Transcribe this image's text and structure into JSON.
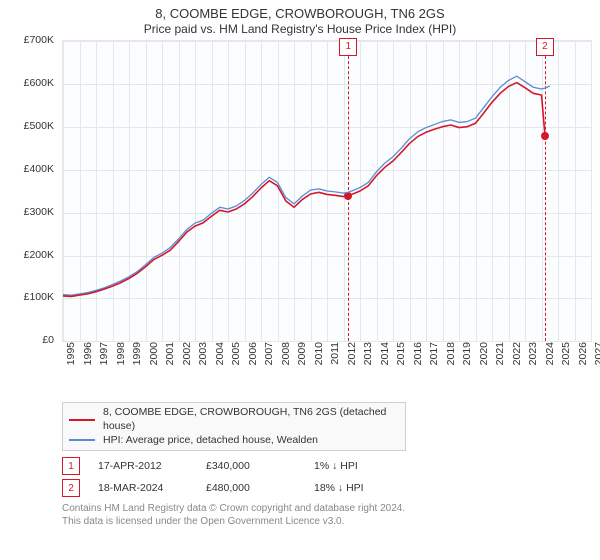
{
  "title": "8, COOMBE EDGE, CROWBOROUGH, TN6 2GS",
  "subtitle": "Price paid vs. HM Land Registry's House Price Index (HPI)",
  "chart": {
    "background_color": "#fcfdfe",
    "grid_color": "#e4e8ee",
    "axis_color": "#444444",
    "font_size_axis": 10.5,
    "x": {
      "min": 1995,
      "max": 2027,
      "ticks": [
        1995,
        1996,
        1997,
        1998,
        1999,
        2000,
        2001,
        2002,
        2003,
        2004,
        2005,
        2006,
        2007,
        2008,
        2009,
        2010,
        2011,
        2012,
        2013,
        2014,
        2015,
        2016,
        2017,
        2018,
        2019,
        2020,
        2021,
        2022,
        2023,
        2024,
        2025,
        2026,
        2027
      ]
    },
    "y": {
      "min": 0,
      "max": 700000,
      "ticks": [
        0,
        100000,
        200000,
        300000,
        400000,
        500000,
        600000,
        700000
      ],
      "tick_labels": [
        "£0",
        "£100K",
        "£200K",
        "£300K",
        "£400K",
        "£500K",
        "£600K",
        "£700K"
      ]
    },
    "series": [
      {
        "id": "hpi",
        "label": "HPI: Average price, detached house, Wealden",
        "color": "#5a8bd6",
        "line_width": 1.3,
        "points": [
          [
            1995.0,
            108000
          ],
          [
            1995.5,
            107000
          ],
          [
            1996.0,
            110000
          ],
          [
            1996.5,
            113000
          ],
          [
            1997.0,
            118000
          ],
          [
            1997.5,
            124000
          ],
          [
            1998.0,
            132000
          ],
          [
            1998.5,
            140000
          ],
          [
            1999.0,
            150000
          ],
          [
            1999.5,
            162000
          ],
          [
            2000.0,
            178000
          ],
          [
            2000.5,
            195000
          ],
          [
            2001.0,
            205000
          ],
          [
            2001.5,
            218000
          ],
          [
            2002.0,
            238000
          ],
          [
            2002.5,
            260000
          ],
          [
            2003.0,
            275000
          ],
          [
            2003.5,
            282000
          ],
          [
            2004.0,
            298000
          ],
          [
            2004.5,
            312000
          ],
          [
            2005.0,
            308000
          ],
          [
            2005.5,
            315000
          ],
          [
            2006.0,
            328000
          ],
          [
            2006.5,
            345000
          ],
          [
            2007.0,
            365000
          ],
          [
            2007.5,
            382000
          ],
          [
            2008.0,
            370000
          ],
          [
            2008.5,
            335000
          ],
          [
            2009.0,
            320000
          ],
          [
            2009.5,
            338000
          ],
          [
            2010.0,
            352000
          ],
          [
            2010.5,
            355000
          ],
          [
            2011.0,
            350000
          ],
          [
            2011.5,
            348000
          ],
          [
            2012.0,
            345000
          ],
          [
            2012.29,
            347000
          ],
          [
            2012.5,
            350000
          ],
          [
            2013.0,
            358000
          ],
          [
            2013.5,
            370000
          ],
          [
            2014.0,
            395000
          ],
          [
            2014.5,
            415000
          ],
          [
            2015.0,
            430000
          ],
          [
            2015.5,
            450000
          ],
          [
            2016.0,
            472000
          ],
          [
            2016.5,
            488000
          ],
          [
            2017.0,
            498000
          ],
          [
            2017.5,
            505000
          ],
          [
            2018.0,
            512000
          ],
          [
            2018.5,
            516000
          ],
          [
            2019.0,
            510000
          ],
          [
            2019.5,
            512000
          ],
          [
            2020.0,
            520000
          ],
          [
            2020.5,
            545000
          ],
          [
            2021.0,
            570000
          ],
          [
            2021.5,
            592000
          ],
          [
            2022.0,
            608000
          ],
          [
            2022.5,
            618000
          ],
          [
            2023.0,
            605000
          ],
          [
            2023.5,
            592000
          ],
          [
            2024.0,
            588000
          ],
          [
            2024.21,
            590000
          ],
          [
            2024.5,
            595000
          ]
        ]
      },
      {
        "id": "price_paid",
        "label": "8, COOMBE EDGE, CROWBOROUGH, TN6 2GS (detached house)",
        "color": "#d4182a",
        "line_width": 1.6,
        "points": [
          [
            1995.0,
            105000
          ],
          [
            1995.5,
            104000
          ],
          [
            1996.0,
            107000
          ],
          [
            1996.5,
            110000
          ],
          [
            1997.0,
            115000
          ],
          [
            1997.5,
            121000
          ],
          [
            1998.0,
            128000
          ],
          [
            1998.5,
            136000
          ],
          [
            1999.0,
            146000
          ],
          [
            1999.5,
            158000
          ],
          [
            2000.0,
            173000
          ],
          [
            2000.5,
            190000
          ],
          [
            2001.0,
            200000
          ],
          [
            2001.5,
            212000
          ],
          [
            2002.0,
            232000
          ],
          [
            2002.5,
            254000
          ],
          [
            2003.0,
            268000
          ],
          [
            2003.5,
            276000
          ],
          [
            2004.0,
            291000
          ],
          [
            2004.5,
            305000
          ],
          [
            2005.0,
            301000
          ],
          [
            2005.5,
            308000
          ],
          [
            2006.0,
            320000
          ],
          [
            2006.5,
            337000
          ],
          [
            2007.0,
            357000
          ],
          [
            2007.5,
            374000
          ],
          [
            2008.0,
            362000
          ],
          [
            2008.5,
            327000
          ],
          [
            2009.0,
            312000
          ],
          [
            2009.5,
            330000
          ],
          [
            2010.0,
            343000
          ],
          [
            2010.5,
            347000
          ],
          [
            2011.0,
            342000
          ],
          [
            2011.5,
            340000
          ],
          [
            2012.0,
            337000
          ],
          [
            2012.29,
            340000
          ],
          [
            2012.5,
            342000
          ],
          [
            2013.0,
            350000
          ],
          [
            2013.5,
            362000
          ],
          [
            2014.0,
            386000
          ],
          [
            2014.5,
            405000
          ],
          [
            2015.0,
            420000
          ],
          [
            2015.5,
            440000
          ],
          [
            2016.0,
            461000
          ],
          [
            2016.5,
            477000
          ],
          [
            2017.0,
            487000
          ],
          [
            2017.5,
            494000
          ],
          [
            2018.0,
            500000
          ],
          [
            2018.5,
            504000
          ],
          [
            2019.0,
            498000
          ],
          [
            2019.5,
            500000
          ],
          [
            2020.0,
            508000
          ],
          [
            2020.5,
            532000
          ],
          [
            2021.0,
            557000
          ],
          [
            2021.5,
            578000
          ],
          [
            2022.0,
            594000
          ],
          [
            2022.5,
            603000
          ],
          [
            2023.0,
            591000
          ],
          [
            2023.5,
            578000
          ],
          [
            2024.0,
            574000
          ],
          [
            2024.21,
            480000
          ]
        ]
      }
    ],
    "markers": [
      {
        "x": 2012.29,
        "y": 340000,
        "color": "#d4182a"
      },
      {
        "x": 2024.21,
        "y": 480000,
        "color": "#d4182a"
      }
    ],
    "vlines": [
      {
        "x": 2012.29,
        "color": "#d4182a",
        "label": "1"
      },
      {
        "x": 2024.21,
        "color": "#d4182a",
        "label": "2"
      }
    ]
  },
  "legend": {
    "line1_label": "8, COOMBE EDGE, CROWBOROUGH, TN6 2GS (detached house)",
    "line1_color": "#d4182a",
    "line2_label": "HPI: Average price, detached house, Wealden",
    "line2_color": "#5a8bd6"
  },
  "events": [
    {
      "num": "1",
      "color": "#d4182a",
      "date": "17-APR-2012",
      "price": "£340,000",
      "pct": "1%",
      "arrow": "↓",
      "suffix": "HPI"
    },
    {
      "num": "2",
      "color": "#d4182a",
      "date": "18-MAR-2024",
      "price": "£480,000",
      "pct": "18%",
      "arrow": "↓",
      "suffix": "HPI"
    }
  ],
  "license": {
    "line1": "Contains HM Land Registry data © Crown copyright and database right 2024.",
    "line2": "This data is licensed under the Open Government Licence v3.0."
  }
}
